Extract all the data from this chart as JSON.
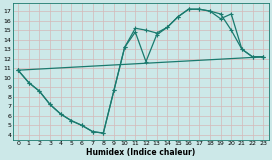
{
  "background_color": "#cce8e8",
  "grid_color": "#b0d4d4",
  "line_color": "#1a7a6e",
  "line_width": 0.9,
  "marker": "+",
  "marker_size": 3,
  "marker_lw": 0.8,
  "xlabel": "Humidex (Indice chaleur)",
  "xlabel_fontsize": 5.5,
  "xlabel_fontweight": "bold",
  "ylim": [
    3.5,
    17.8
  ],
  "xlim": [
    -0.5,
    23.5
  ],
  "yticks": [
    4,
    5,
    6,
    7,
    8,
    9,
    10,
    11,
    12,
    13,
    14,
    15,
    16,
    17
  ],
  "xticks": [
    0,
    1,
    2,
    3,
    4,
    5,
    6,
    7,
    8,
    9,
    10,
    11,
    12,
    13,
    14,
    15,
    16,
    17,
    18,
    19,
    20,
    21,
    22,
    23
  ],
  "tick_fontsize": 4.5,
  "series": [
    {
      "x": [
        0,
        1,
        2,
        3,
        4,
        5,
        6,
        7,
        8,
        9,
        10,
        11,
        12,
        13,
        14,
        15,
        16,
        17,
        18,
        19,
        20,
        21,
        22,
        23
      ],
      "y": [
        10.8,
        9.5,
        8.6,
        7.2,
        6.2,
        5.5,
        5.0,
        4.35,
        4.2,
        8.7,
        13.2,
        15.2,
        15.0,
        14.7,
        15.3,
        16.4,
        17.2,
        17.2,
        17.0,
        16.7,
        15.0,
        13.0,
        12.2,
        12.2
      ]
    },
    {
      "x": [
        0,
        1,
        2,
        3,
        4,
        5,
        6,
        7,
        8,
        9,
        10,
        11,
        12,
        13,
        14,
        15,
        16,
        17,
        18,
        19,
        20,
        21,
        22,
        23
      ],
      "y": [
        10.8,
        9.5,
        8.6,
        7.2,
        6.2,
        5.5,
        5.0,
        4.35,
        4.2,
        8.7,
        13.2,
        14.8,
        11.7,
        14.5,
        15.3,
        16.4,
        17.2,
        17.2,
        17.0,
        16.2,
        16.7,
        13.0,
        12.2,
        12.2
      ]
    },
    {
      "x": [
        0,
        23
      ],
      "y": [
        10.8,
        12.2
      ]
    }
  ]
}
